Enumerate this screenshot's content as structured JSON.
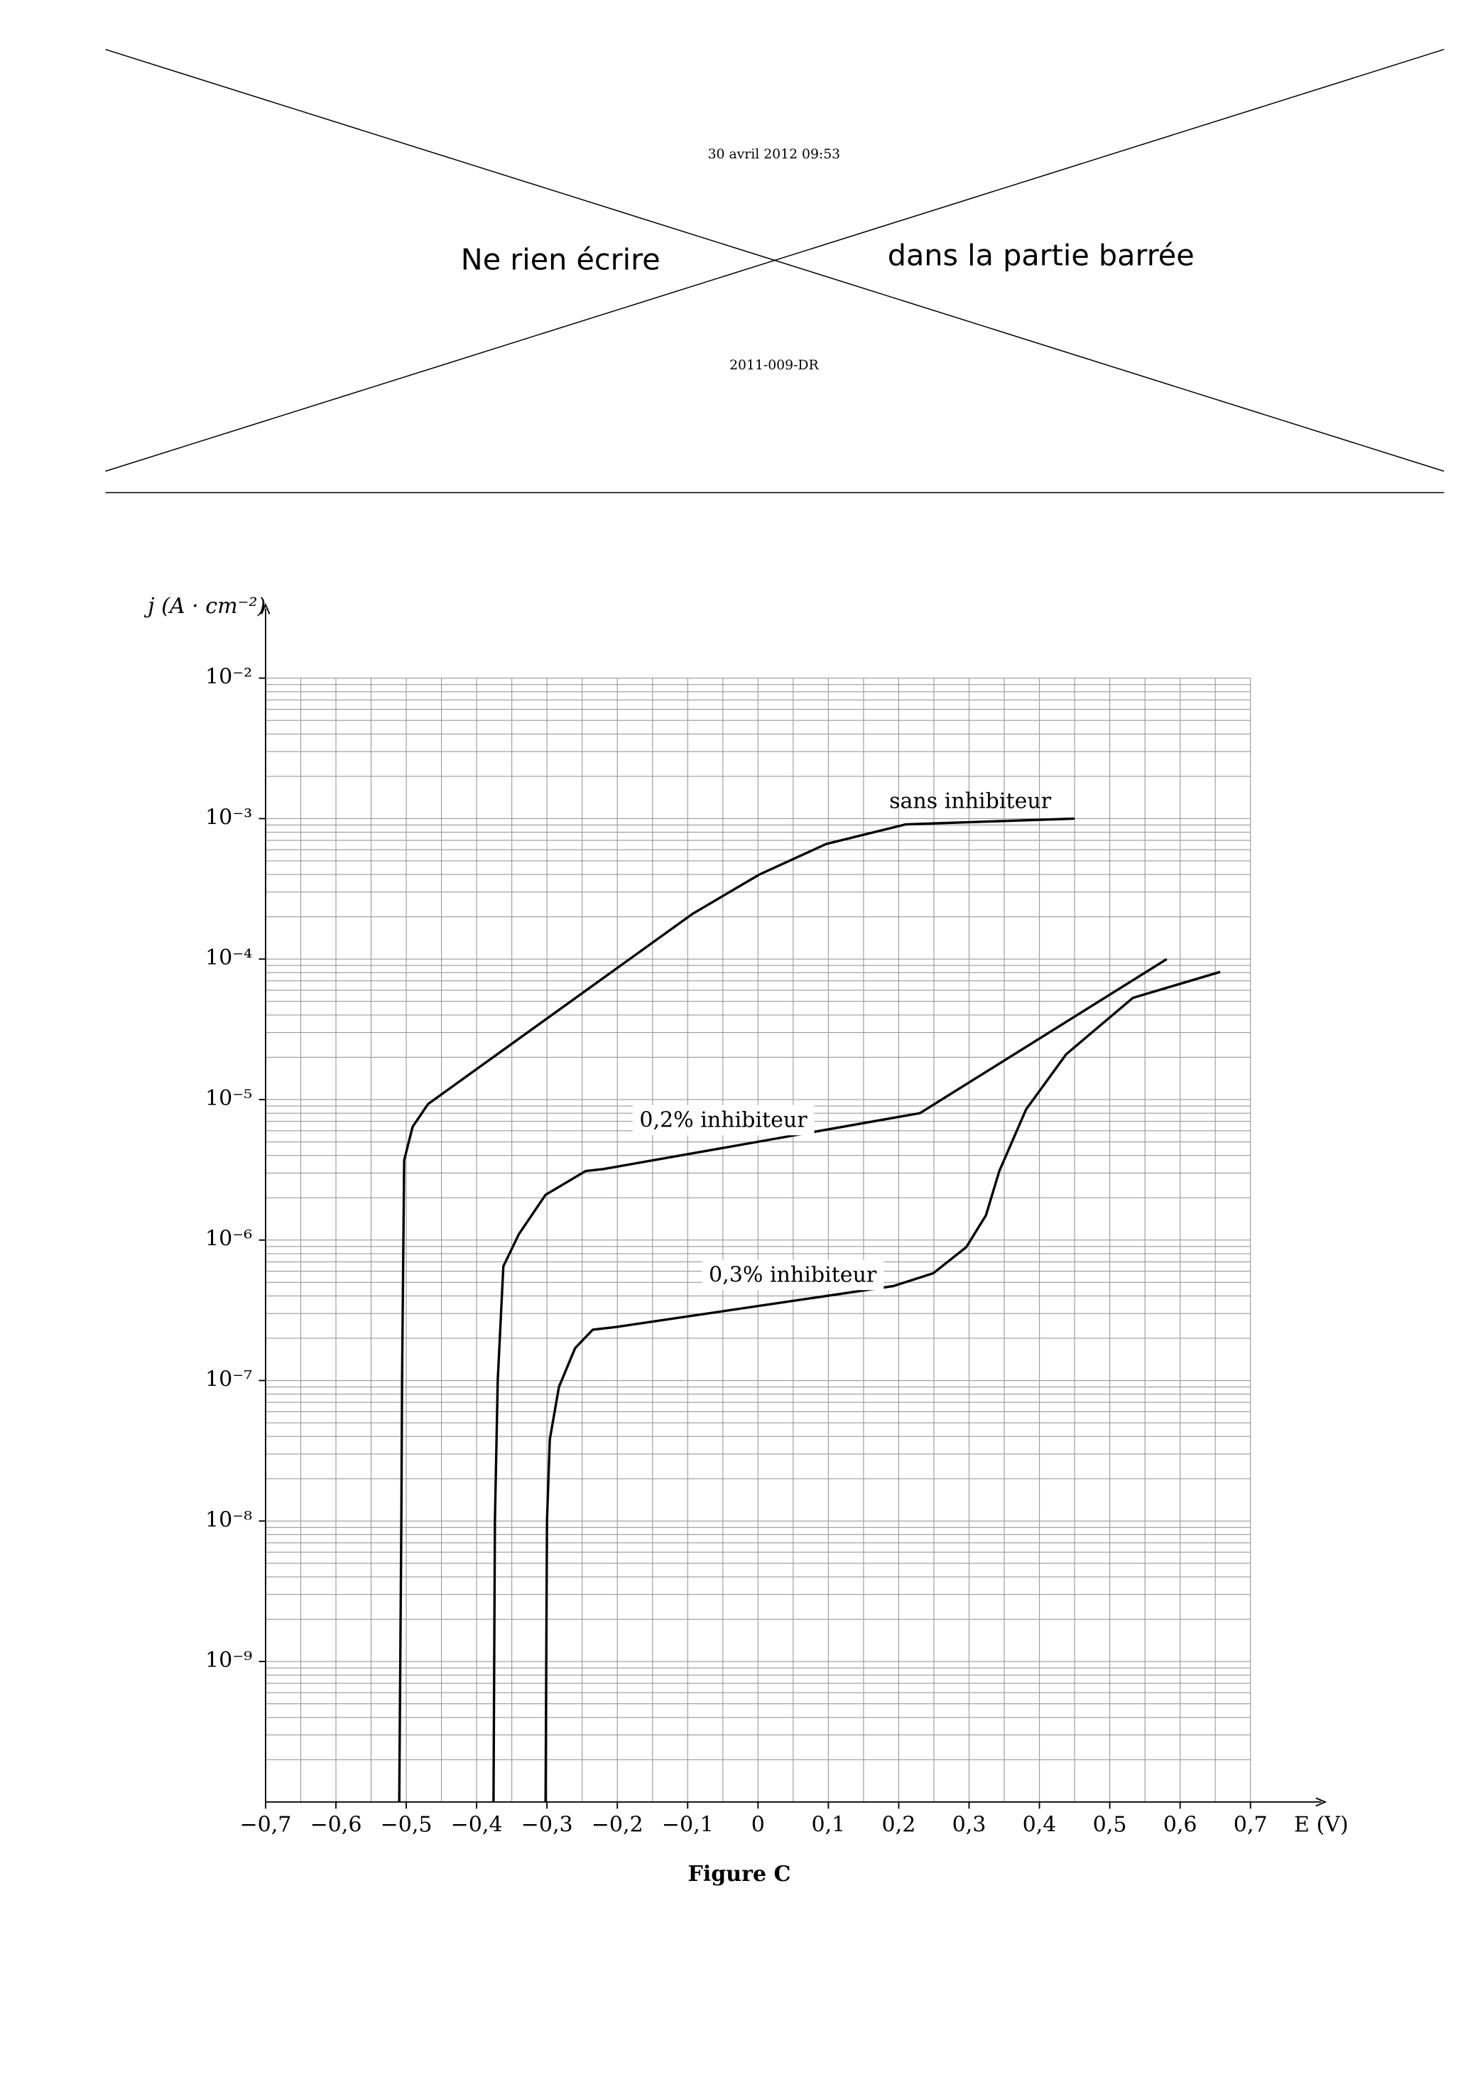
{
  "header": {
    "date": "30 avril 2012 09:53",
    "left": "Ne rien écrire",
    "right": "dans la partie barrée",
    "code": "2011-009-DR"
  },
  "chart_data": {
    "type": "line",
    "y_label": "j (A · cm⁻²)",
    "x_label": "E (V)",
    "caption": "Figure C",
    "xlim": [
      -0.7,
      0.7
    ],
    "ylim": [
      1e-10,
      0.01
    ],
    "log_y": true,
    "grid": true,
    "minor_grid": true,
    "xticks": [
      {
        "value": -0.7,
        "label": "−0,7"
      },
      {
        "value": -0.6,
        "label": "−0,6"
      },
      {
        "value": -0.5,
        "label": "−0,5"
      },
      {
        "value": -0.4,
        "label": "−0,4"
      },
      {
        "value": -0.3,
        "label": "−0,3"
      },
      {
        "value": -0.2,
        "label": "−0,2"
      },
      {
        "value": -0.1,
        "label": "−0,1"
      },
      0,
      {
        "value": 0.1,
        "label": "0,1"
      },
      {
        "value": 0.2,
        "label": "0,2"
      },
      {
        "value": 0.3,
        "label": "0,3"
      },
      {
        "value": 0.4,
        "label": "0,4"
      },
      {
        "value": 0.5,
        "label": "0,5"
      },
      {
        "value": 0.6,
        "label": "0,6"
      },
      {
        "value": 0.7,
        "label": "0,7"
      }
    ],
    "yticks": [
      {
        "value": 0.01,
        "label": "10⁻²"
      },
      {
        "value": 0.001,
        "label": "10⁻³"
      },
      {
        "value": 0.0001,
        "label": "10⁻⁴"
      },
      {
        "value": 1e-05,
        "label": "10⁻⁵"
      },
      {
        "value": 1e-06,
        "label": "10⁻⁶"
      },
      {
        "value": 1e-07,
        "label": "10⁻⁷"
      },
      {
        "value": 1e-08,
        "label": "10⁻⁸"
      },
      {
        "value": 1e-09,
        "label": "10⁻⁹"
      }
    ],
    "series": [
      {
        "name": "sans inhibiteur",
        "color": "#000000",
        "x": [
          -0.51,
          -0.507,
          -0.506,
          -0.503,
          -0.491,
          -0.469,
          -0.093,
          0.002,
          0.097,
          0.21,
          0.45
        ],
        "values": [
          1e-10,
          1e-08,
          1e-07,
          3.7e-06,
          6.4e-06,
          9.3e-06,
          0.00021,
          0.0004,
          0.00066,
          0.00091,
          0.001
        ]
      },
      {
        "name": "0,2% inhibiteur",
        "color": "#000000",
        "x": [
          -0.376,
          -0.374,
          -0.37,
          -0.362,
          -0.34,
          -0.302,
          -0.245,
          -0.22,
          0.23,
          0.581
        ],
        "values": [
          1e-10,
          1e-08,
          1e-07,
          6.5e-07,
          1.1e-06,
          2.1e-06,
          3.1e-06,
          3.2e-06,
          8e-06,
          0.0001
        ]
      },
      {
        "name": "0,3% inhibiteur",
        "color": "#000000",
        "x": [
          -0.302,
          -0.3,
          -0.296,
          -0.283,
          -0.26,
          -0.235,
          -0.203,
          0.192,
          0.249,
          0.296,
          0.324,
          0.343,
          0.381,
          0.438,
          0.533,
          0.657
        ],
        "values": [
          1e-10,
          1e-08,
          3.8e-08,
          9e-08,
          1.7e-07,
          2.3e-07,
          2.4e-07,
          4.7e-07,
          5.8e-07,
          8.9e-07,
          1.5e-06,
          3.1e-06,
          8.5e-06,
          2.1e-05,
          5.3e-05,
          8.1e-05
        ]
      }
    ]
  }
}
